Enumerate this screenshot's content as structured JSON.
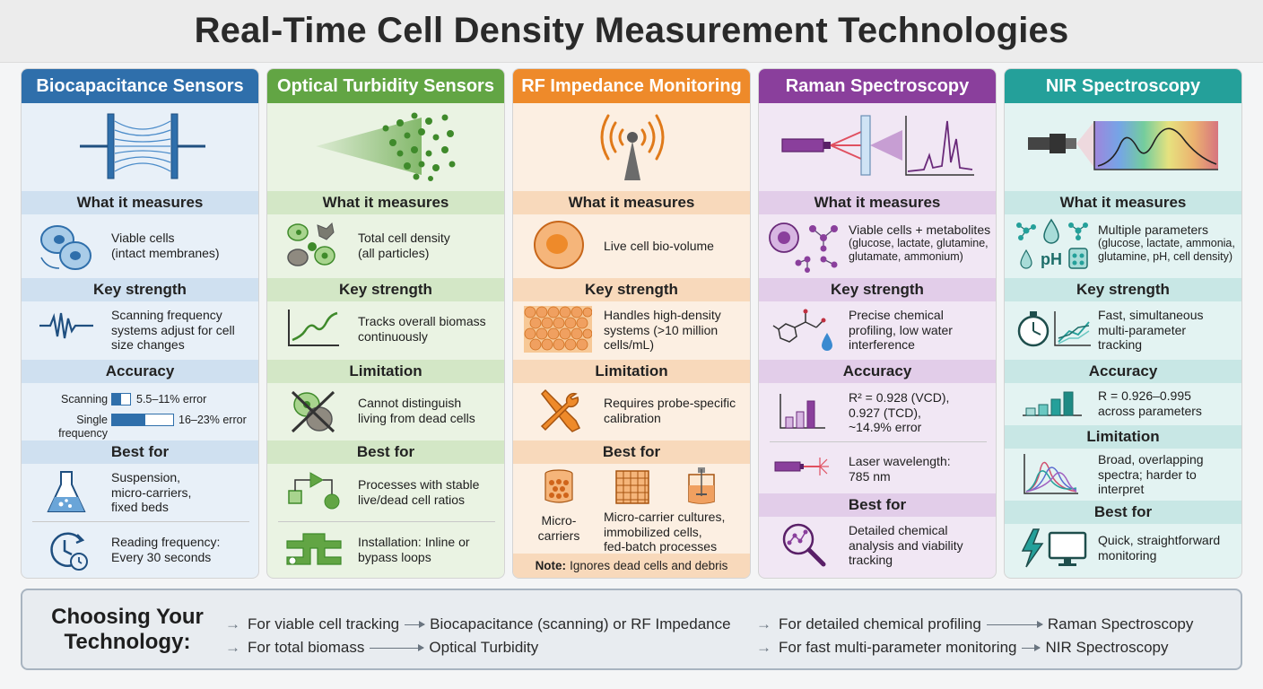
{
  "title": "Real-Time Cell Density Measurement Technologies",
  "columns": {
    "biocap": {
      "header": "Biocapacitance Sensors",
      "what_label": "What it measures",
      "what_text": [
        "Viable cells",
        "(intact membranes)"
      ],
      "strength_label": "Key strength",
      "strength_text": [
        "Scanning frequency",
        "systems adjust for cell",
        "size changes"
      ],
      "accuracy_label": "Accuracy",
      "accuracy": {
        "scanning_label": "Scanning",
        "scanning_value": "5.5–11% error",
        "single_label": "Single frequency",
        "single_value": "16–23% error"
      },
      "best_label": "Best for",
      "best_text": [
        "Suspension,",
        "micro-carriers,",
        "fixed beds"
      ],
      "reading_text": [
        "Reading frequency:",
        "Every 30 seconds"
      ]
    },
    "optical": {
      "header": "Optical Turbidity Sensors",
      "what_label": "What it measures",
      "what_text": [
        "Total cell density",
        "(all particles)"
      ],
      "strength_label": "Key strength",
      "strength_text": [
        "Tracks overall biomass",
        "continuously"
      ],
      "limitation_label": "Limitation",
      "limitation_text": [
        "Cannot distinguish",
        "living from dead cells"
      ],
      "best_label": "Best for",
      "best_text": [
        "Processes with stable",
        "live/dead cell ratios"
      ],
      "install_text": [
        "Installation: Inline or",
        "bypass loops"
      ]
    },
    "rf": {
      "header": "RF Impedance Monitoring",
      "what_label": "What it measures",
      "what_text": "Live cell bio-volume",
      "strength_label": "Key strength",
      "strength_text": [
        "Handles high-density",
        "systems (>10 million",
        "cells/mL)"
      ],
      "limitation_label": "Limitation",
      "limitation_text": [
        "Requires probe-specific",
        "calibration"
      ],
      "best_label": "Best for",
      "best_left": [
        "Micro-",
        "carriers"
      ],
      "best_text": [
        "Micro-carrier cultures,",
        "immobilized cells,",
        "fed-batch processes"
      ],
      "note_bold": "Note:",
      "note_text": "Ignores dead cells and debris"
    },
    "raman": {
      "header": "Raman Spectroscopy",
      "what_label": "What it measures",
      "what_text": [
        "Viable cells + metabolites",
        "(glucose, lactate, glutamine,",
        "glutamate, ammonium)"
      ],
      "strength_label": "Key strength",
      "strength_text": [
        "Precise chemical",
        "profiling, low water",
        "interference"
      ],
      "accuracy_label": "Accuracy",
      "accuracy_text": [
        "R² = 0.928 (VCD),",
        "0.927 (TCD),",
        "~14.9% error"
      ],
      "laser_text": [
        "Laser wavelength:",
        "785 nm"
      ],
      "best_label": "Best for",
      "best_text": [
        "Detailed chemical",
        "analysis and viability",
        "tracking"
      ]
    },
    "nir": {
      "header": "NIR Spectroscopy",
      "what_label": "What it measures",
      "what_text": [
        "Multiple parameters",
        "(glucose, lactate, ammonia,",
        "glutamine, pH, cell density)"
      ],
      "ph_label": "pH",
      "strength_label": "Key strength",
      "strength_text": [
        "Fast, simultaneous",
        "multi-parameter",
        "tracking"
      ],
      "accuracy_label": "Accuracy",
      "accuracy_text": [
        "R = 0.926–0.995",
        "across parameters"
      ],
      "limitation_label": "Limitation",
      "limitation_text": [
        "Broad, overlapping",
        "spectra; harder to",
        "interpret"
      ],
      "best_label": "Best for",
      "best_text": [
        "Quick, straightforward",
        "monitoring"
      ]
    }
  },
  "choosing": {
    "heading": [
      "Choosing Your",
      "Technology:"
    ],
    "rules": [
      {
        "need": "For viable cell tracking",
        "tech": "Biocapacitance (scanning) or RF Impedance"
      },
      {
        "need": "For total biomass",
        "tech": "Optical Turbidity"
      },
      {
        "need": "For detailed chemical profiling",
        "tech": "Raman Spectroscopy"
      },
      {
        "need": "For fast multi-parameter monitoring",
        "tech": "NIR Spectroscopy"
      }
    ]
  },
  "colors": {
    "biocap": "#2f6fab",
    "optical": "#62a544",
    "rf": "#ee8a2a",
    "raman": "#8a3f9c",
    "nir": "#24a09a"
  }
}
